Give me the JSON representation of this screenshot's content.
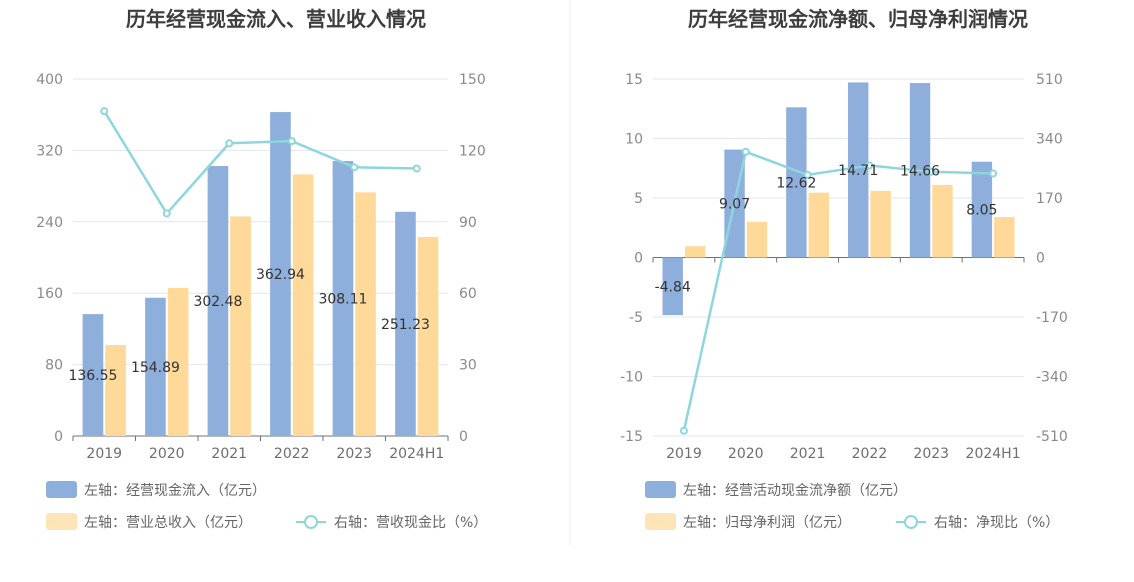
{
  "colors": {
    "bar_primary": "#8eaedb",
    "bar_secondary": "#ffd99a",
    "line": "#8dd7dc",
    "divider": "#ececec"
  },
  "chart_data": [
    {
      "type": "bar",
      "title": "历年经营现金流入、营业收入情况",
      "categories": [
        "2019",
        "2020",
        "2021",
        "2022",
        "2023",
        "2024H1"
      ],
      "left_axis": {
        "ticks": [
          "0",
          "80",
          "160",
          "240",
          "320",
          "400"
        ],
        "ylim": [
          0,
          400
        ]
      },
      "right_axis": {
        "ticks": [
          "0",
          "30",
          "60",
          "90",
          "120",
          "150"
        ],
        "ylim": [
          0,
          150
        ]
      },
      "grid": true,
      "legend_position": "bottom-left",
      "series": [
        {
          "name": "左轴：经营现金流入（亿元）",
          "type": "bar",
          "axis": "left",
          "values": [
            136.55,
            154.89,
            302.48,
            362.94,
            308.11,
            251.23
          ],
          "labels": [
            "136.55",
            "154.89",
            "302.48",
            "362.94",
            "308.11",
            "251.23"
          ]
        },
        {
          "name": "左轴：营业总收入（亿元）",
          "type": "bar",
          "axis": "left",
          "values": [
            102,
            166,
            246,
            293,
            273,
            223
          ]
        },
        {
          "name": "右轴：营收现金比（%）",
          "type": "line",
          "axis": "right",
          "values": [
            136.5,
            93.5,
            123.0,
            123.9,
            112.9,
            112.4
          ]
        }
      ]
    },
    {
      "type": "bar",
      "title": "历年经营现金流净额、归母净利润情况",
      "categories": [
        "2019",
        "2020",
        "2021",
        "2022",
        "2023",
        "2024H1"
      ],
      "left_axis": {
        "ticks": [
          "-15",
          "-10",
          "-5",
          "0",
          "5",
          "10",
          "15"
        ],
        "ylim": [
          -15,
          15
        ]
      },
      "right_axis": {
        "ticks": [
          "-510",
          "-340",
          "-170",
          "0",
          "170",
          "340",
          "510"
        ],
        "ylim": [
          -510,
          510
        ]
      },
      "grid": true,
      "legend_position": "bottom-left",
      "series": [
        {
          "name": "左轴：经营活动现金流净额（亿元）",
          "type": "bar",
          "axis": "left",
          "values": [
            -4.84,
            9.07,
            12.62,
            14.71,
            14.66,
            8.05
          ],
          "labels": [
            "-4.84",
            "9.07",
            "12.62",
            "14.71",
            "14.66",
            "8.05"
          ]
        },
        {
          "name": "左轴：归母净利润（亿元）",
          "type": "bar",
          "axis": "left",
          "values": [
            0.95,
            3.0,
            5.45,
            5.6,
            6.1,
            3.4
          ]
        },
        {
          "name": "右轴：净现比（%）",
          "type": "line",
          "axis": "right",
          "values": [
            -495,
            302,
            236,
            263,
            245,
            240
          ]
        }
      ]
    }
  ]
}
